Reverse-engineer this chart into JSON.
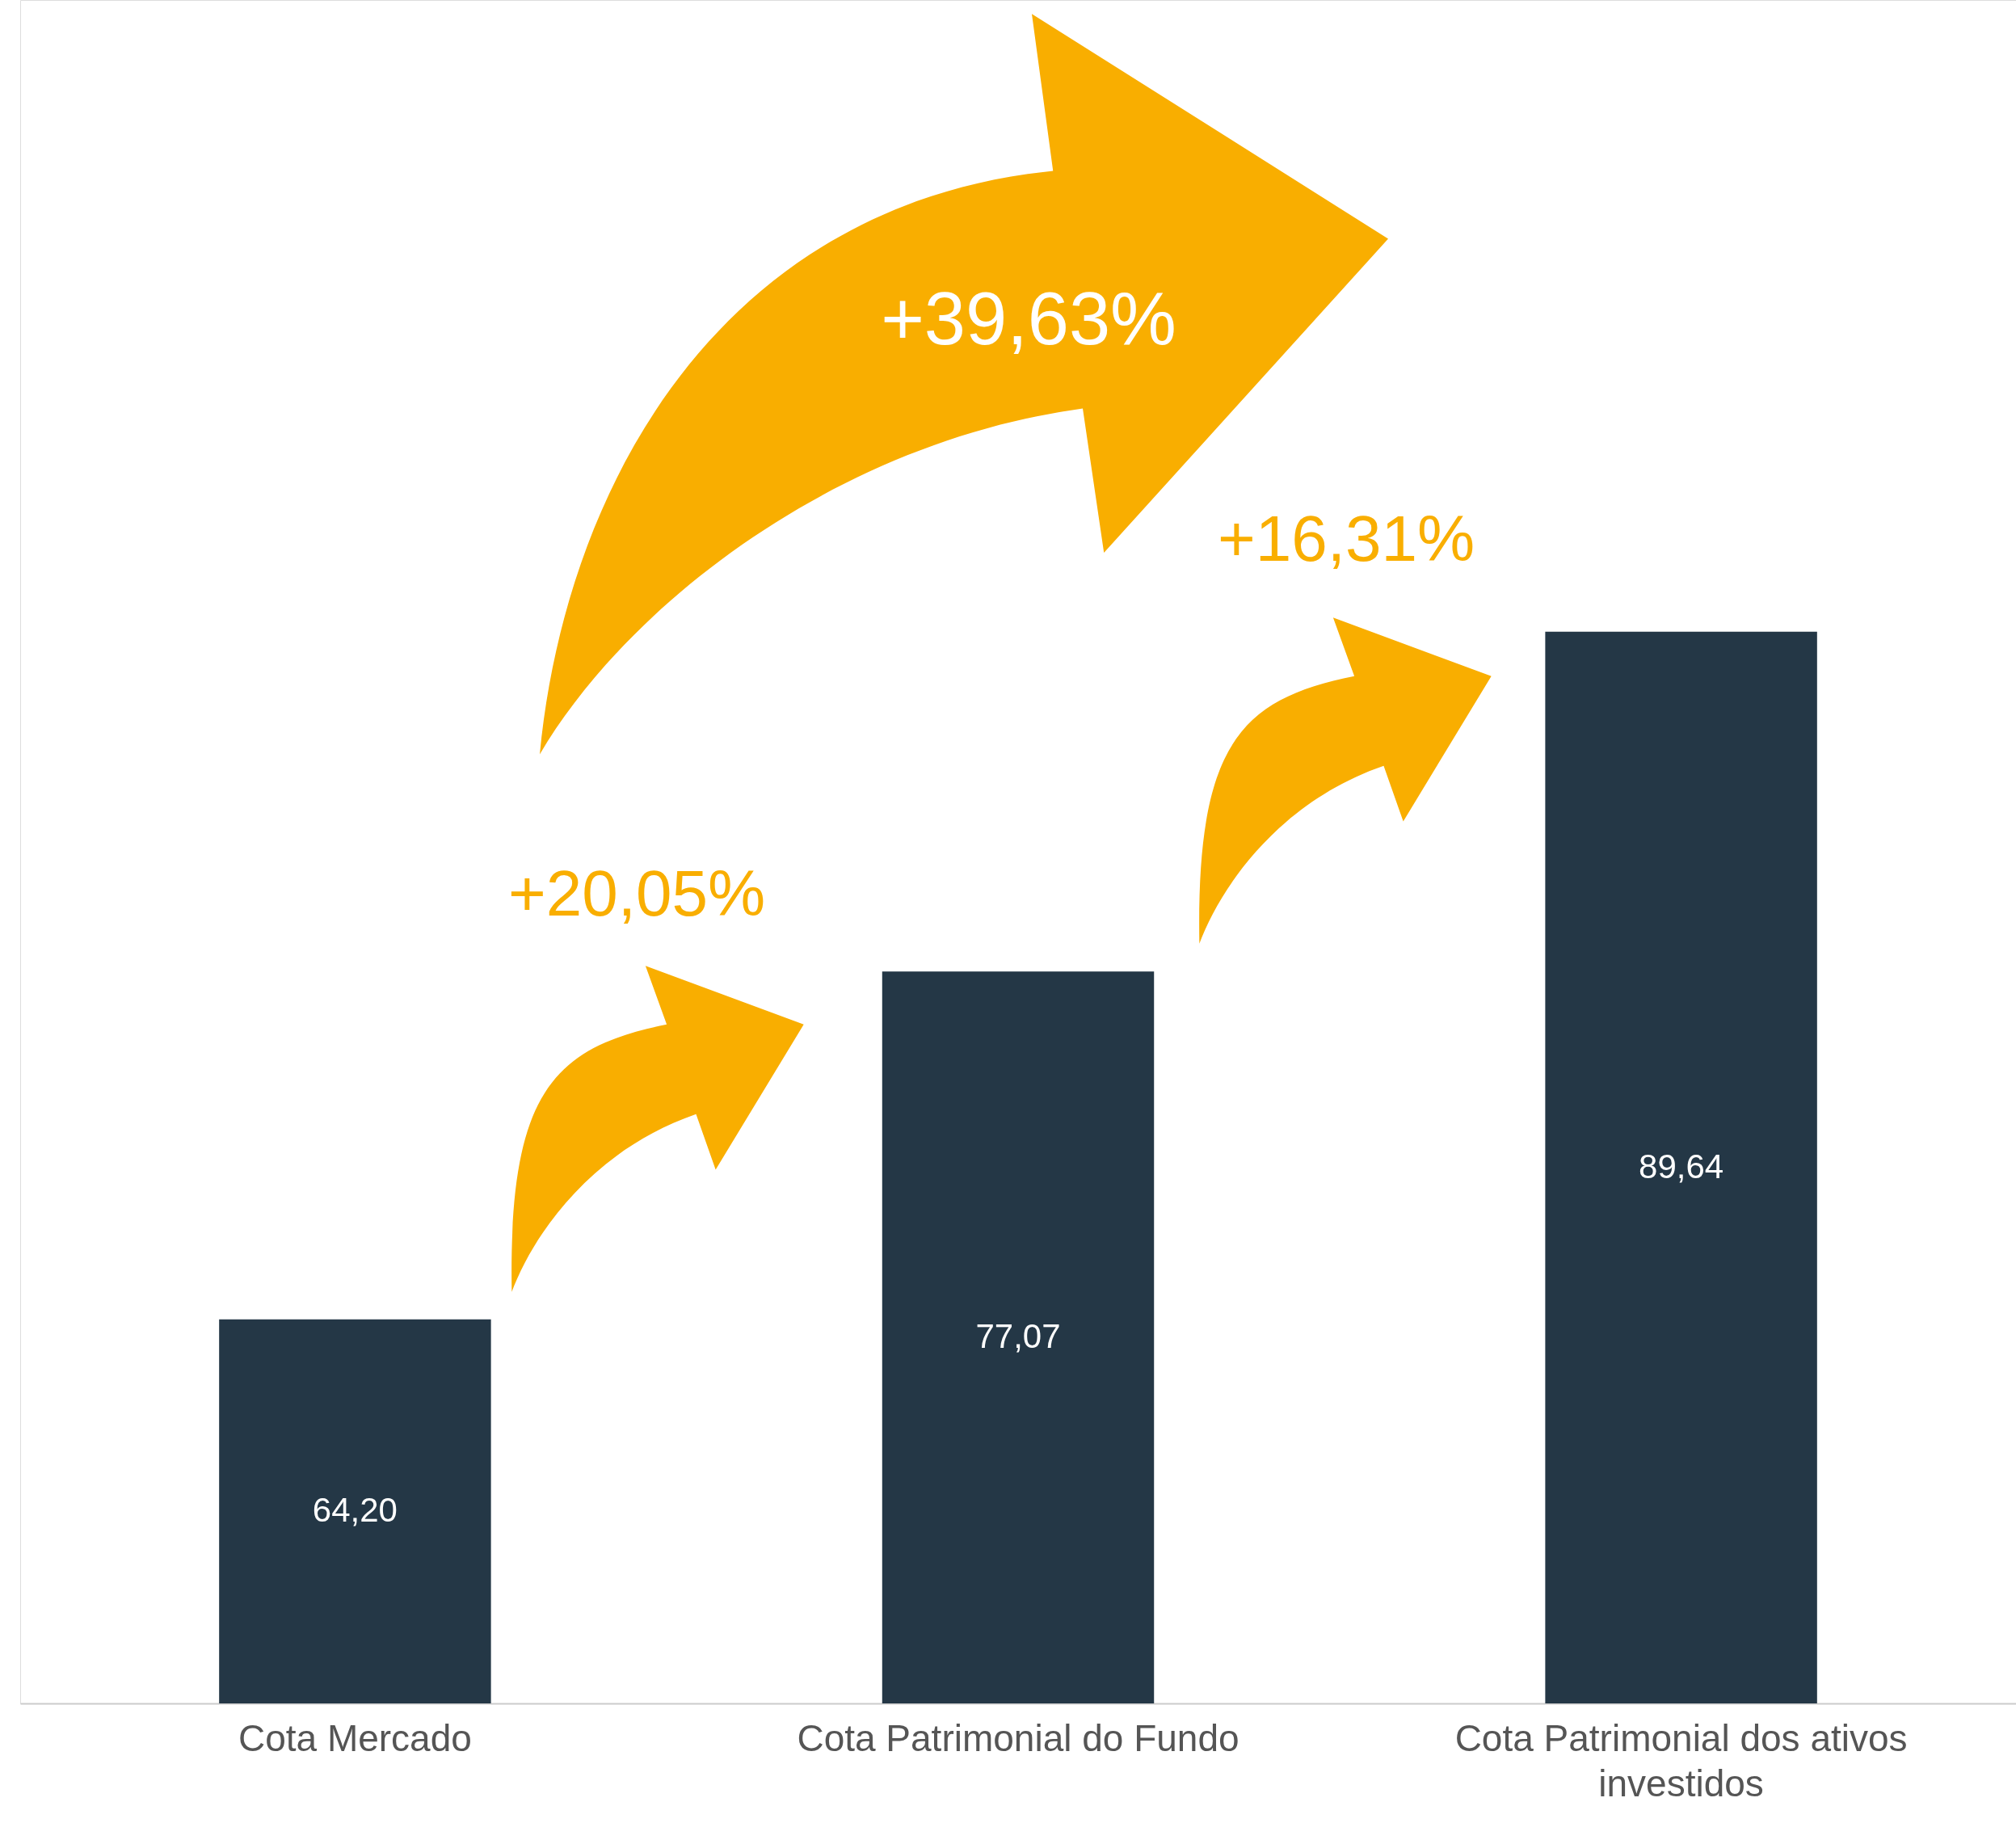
{
  "chart_data": {
    "type": "bar",
    "categories": [
      "Cota Mercado",
      "Cota Patrimonial do Fundo",
      "Cota Patrimonial dos ativos investidos"
    ],
    "values": [
      64.2,
      77.07,
      89.64
    ],
    "value_labels": [
      "64,20",
      "77,07",
      "89,64"
    ],
    "color": "#243746",
    "ylim": [
      50,
      113
    ],
    "grid": false,
    "tick_labels": "x",
    "annotations": [
      "+20,05%",
      "+16,31%",
      "+39,63%"
    ]
  }
}
